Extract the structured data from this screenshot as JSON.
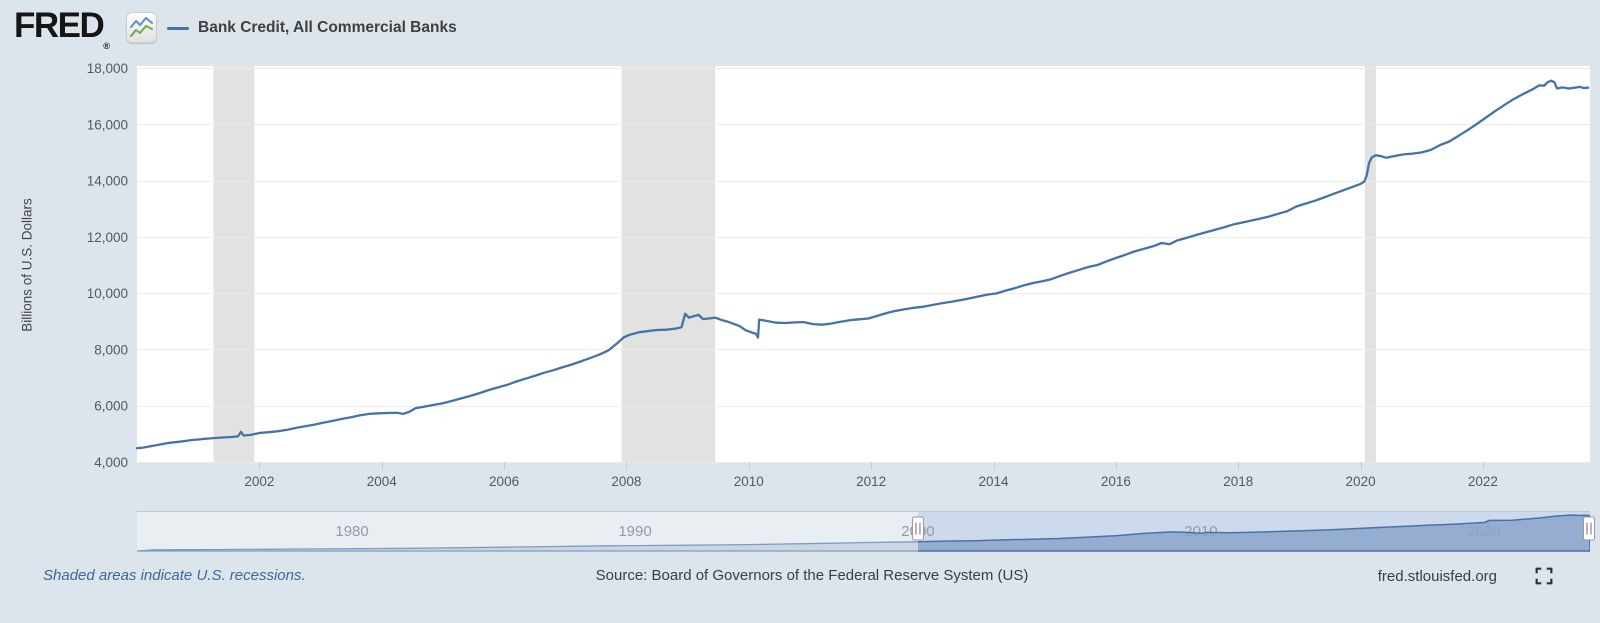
{
  "header": {
    "logo_text": "FRED",
    "registered_mark": "®",
    "legend_label": "Bank Credit, All Commercial Banks"
  },
  "footer": {
    "recession_note": "Shaded areas indicate U.S. recessions.",
    "source": "Source: Board of Governors of the Federal Reserve System (US)",
    "site": "fred.stlouisfed.org"
  },
  "colors": {
    "page_bg": "#dce4ec",
    "plot_bg": "#ffffff",
    "grid": "#ececec",
    "recession": "#e2e2e0",
    "line": "#4572a7",
    "tick_mark": "#c3cdd8",
    "slider_track": "#e9eef3",
    "slider_track_border": "#c2c7cd",
    "slider_selection_bg": "#cdd9ec",
    "slider_area_fill_selected": "#8aa5cd",
    "slider_area_line_selected": "#4a72a6",
    "slider_area_fill_unselected": "#b3c2d6",
    "slider_area_line_unselected": "#7f9cc0",
    "handle_fill": "#fdfdfd",
    "handle_border": "#999999",
    "handle_grip": "#898989",
    "logo_chart_blue": "#5e90c6",
    "logo_chart_green": "#74aa44",
    "footer_icon": "#333333"
  },
  "chart_data": {
    "type": "line",
    "title": "Bank Credit, All Commercial Banks",
    "ylabel": "Billions of U.S. Dollars",
    "x_domain": [
      2000.0,
      2023.75
    ],
    "ylim": [
      4000,
      18000
    ],
    "y_ticks": [
      4000,
      6000,
      8000,
      10000,
      12000,
      14000,
      16000,
      18000
    ],
    "x_ticks": [
      2002,
      2004,
      2006,
      2008,
      2010,
      2012,
      2014,
      2016,
      2018,
      2020,
      2022
    ],
    "grid": "horizontal",
    "legend_position": "top-left",
    "recessions": [
      [
        2001.25,
        2001.92
      ],
      [
        2007.92,
        2009.45
      ],
      [
        2020.07,
        2020.25
      ]
    ],
    "series": [
      {
        "name": "Bank Credit, All Commercial Banks",
        "color": "#4572a7",
        "units": "Billions of U.S. Dollars",
        "points": [
          [
            2000.0,
            4490
          ],
          [
            2000.1,
            4510
          ],
          [
            2000.2,
            4550
          ],
          [
            2000.3,
            4590
          ],
          [
            2000.4,
            4630
          ],
          [
            2000.5,
            4670
          ],
          [
            2000.6,
            4700
          ],
          [
            2000.7,
            4720
          ],
          [
            2000.8,
            4750
          ],
          [
            2000.9,
            4780
          ],
          [
            2001.0,
            4800
          ],
          [
            2001.1,
            4820
          ],
          [
            2001.25,
            4850
          ],
          [
            2001.4,
            4870
          ],
          [
            2001.55,
            4890
          ],
          [
            2001.65,
            4910
          ],
          [
            2001.7,
            5070
          ],
          [
            2001.74,
            4940
          ],
          [
            2001.85,
            4960
          ],
          [
            2002.0,
            5030
          ],
          [
            2002.15,
            5060
          ],
          [
            2002.3,
            5090
          ],
          [
            2002.45,
            5140
          ],
          [
            2002.6,
            5210
          ],
          [
            2002.75,
            5270
          ],
          [
            2002.9,
            5330
          ],
          [
            2003.05,
            5400
          ],
          [
            2003.2,
            5460
          ],
          [
            2003.35,
            5530
          ],
          [
            2003.5,
            5590
          ],
          [
            2003.65,
            5660
          ],
          [
            2003.8,
            5710
          ],
          [
            2003.95,
            5730
          ],
          [
            2004.1,
            5740
          ],
          [
            2004.25,
            5750
          ],
          [
            2004.35,
            5710
          ],
          [
            2004.45,
            5780
          ],
          [
            2004.55,
            5910
          ],
          [
            2004.7,
            5970
          ],
          [
            2004.85,
            6030
          ],
          [
            2005.0,
            6090
          ],
          [
            2005.15,
            6170
          ],
          [
            2005.3,
            6260
          ],
          [
            2005.45,
            6350
          ],
          [
            2005.6,
            6450
          ],
          [
            2005.75,
            6560
          ],
          [
            2005.9,
            6650
          ],
          [
            2006.05,
            6740
          ],
          [
            2006.2,
            6860
          ],
          [
            2006.35,
            6960
          ],
          [
            2006.5,
            7060
          ],
          [
            2006.65,
            7170
          ],
          [
            2006.8,
            7260
          ],
          [
            2006.95,
            7360
          ],
          [
            2007.1,
            7460
          ],
          [
            2007.25,
            7570
          ],
          [
            2007.4,
            7690
          ],
          [
            2007.55,
            7810
          ],
          [
            2007.7,
            7960
          ],
          [
            2007.85,
            8220
          ],
          [
            2007.95,
            8420
          ],
          [
            2008.05,
            8520
          ],
          [
            2008.2,
            8610
          ],
          [
            2008.35,
            8650
          ],
          [
            2008.5,
            8690
          ],
          [
            2008.65,
            8700
          ],
          [
            2008.8,
            8740
          ],
          [
            2008.9,
            8790
          ],
          [
            2008.96,
            9270
          ],
          [
            2009.02,
            9130
          ],
          [
            2009.1,
            9180
          ],
          [
            2009.18,
            9230
          ],
          [
            2009.25,
            9080
          ],
          [
            2009.35,
            9100
          ],
          [
            2009.45,
            9130
          ],
          [
            2009.55,
            9050
          ],
          [
            2009.65,
            8990
          ],
          [
            2009.75,
            8910
          ],
          [
            2009.85,
            8830
          ],
          [
            2009.95,
            8680
          ],
          [
            2010.05,
            8600
          ],
          [
            2010.12,
            8550
          ],
          [
            2010.15,
            8420
          ],
          [
            2010.17,
            9060
          ],
          [
            2010.3,
            9010
          ],
          [
            2010.45,
            8950
          ],
          [
            2010.6,
            8940
          ],
          [
            2010.75,
            8960
          ],
          [
            2010.9,
            8970
          ],
          [
            2011.05,
            8900
          ],
          [
            2011.2,
            8880
          ],
          [
            2011.35,
            8920
          ],
          [
            2011.5,
            8980
          ],
          [
            2011.65,
            9040
          ],
          [
            2011.8,
            9070
          ],
          [
            2011.95,
            9100
          ],
          [
            2012.1,
            9190
          ],
          [
            2012.25,
            9290
          ],
          [
            2012.4,
            9370
          ],
          [
            2012.55,
            9430
          ],
          [
            2012.7,
            9480
          ],
          [
            2012.85,
            9520
          ],
          [
            2013.0,
            9580
          ],
          [
            2013.15,
            9640
          ],
          [
            2013.3,
            9690
          ],
          [
            2013.45,
            9750
          ],
          [
            2013.6,
            9810
          ],
          [
            2013.75,
            9880
          ],
          [
            2013.9,
            9950
          ],
          [
            2014.05,
            9990
          ],
          [
            2014.2,
            10090
          ],
          [
            2014.35,
            10180
          ],
          [
            2014.5,
            10280
          ],
          [
            2014.65,
            10360
          ],
          [
            2014.8,
            10420
          ],
          [
            2014.95,
            10500
          ],
          [
            2015.1,
            10620
          ],
          [
            2015.25,
            10730
          ],
          [
            2015.4,
            10830
          ],
          [
            2015.55,
            10930
          ],
          [
            2015.7,
            11000
          ],
          [
            2015.85,
            11130
          ],
          [
            2016.0,
            11250
          ],
          [
            2016.15,
            11360
          ],
          [
            2016.3,
            11480
          ],
          [
            2016.45,
            11570
          ],
          [
            2016.6,
            11660
          ],
          [
            2016.75,
            11780
          ],
          [
            2016.88,
            11740
          ],
          [
            2017.0,
            11870
          ],
          [
            2017.15,
            11960
          ],
          [
            2017.3,
            12060
          ],
          [
            2017.45,
            12150
          ],
          [
            2017.6,
            12240
          ],
          [
            2017.75,
            12330
          ],
          [
            2017.9,
            12430
          ],
          [
            2018.05,
            12500
          ],
          [
            2018.2,
            12570
          ],
          [
            2018.35,
            12640
          ],
          [
            2018.5,
            12720
          ],
          [
            2018.65,
            12820
          ],
          [
            2018.8,
            12910
          ],
          [
            2018.95,
            13080
          ],
          [
            2019.1,
            13180
          ],
          [
            2019.25,
            13280
          ],
          [
            2019.4,
            13400
          ],
          [
            2019.55,
            13520
          ],
          [
            2019.7,
            13640
          ],
          [
            2019.85,
            13760
          ],
          [
            2020.0,
            13880
          ],
          [
            2020.06,
            13960
          ],
          [
            2020.1,
            14180
          ],
          [
            2020.14,
            14620
          ],
          [
            2020.18,
            14820
          ],
          [
            2020.25,
            14900
          ],
          [
            2020.33,
            14870
          ],
          [
            2020.42,
            14810
          ],
          [
            2020.55,
            14870
          ],
          [
            2020.7,
            14930
          ],
          [
            2020.85,
            14960
          ],
          [
            2021.0,
            15000
          ],
          [
            2021.15,
            15090
          ],
          [
            2021.3,
            15260
          ],
          [
            2021.45,
            15390
          ],
          [
            2021.6,
            15590
          ],
          [
            2021.75,
            15790
          ],
          [
            2021.9,
            16010
          ],
          [
            2022.05,
            16240
          ],
          [
            2022.2,
            16470
          ],
          [
            2022.35,
            16680
          ],
          [
            2022.5,
            16890
          ],
          [
            2022.65,
            17070
          ],
          [
            2022.8,
            17230
          ],
          [
            2022.92,
            17380
          ],
          [
            2023.0,
            17370
          ],
          [
            2023.06,
            17500
          ],
          [
            2023.12,
            17550
          ],
          [
            2023.17,
            17490
          ],
          [
            2023.21,
            17270
          ],
          [
            2023.3,
            17310
          ],
          [
            2023.4,
            17270
          ],
          [
            2023.5,
            17300
          ],
          [
            2023.58,
            17330
          ],
          [
            2023.65,
            17290
          ],
          [
            2023.72,
            17300
          ]
        ]
      }
    ],
    "slider": {
      "x_domain": [
        1972.4,
        2023.75
      ],
      "selected": [
        2000.0,
        2023.75
      ],
      "year_labels": [
        1980,
        1990,
        2000,
        2010,
        2020
      ],
      "points": [
        [
          1973,
          560
        ],
        [
          1974,
          640
        ],
        [
          1975,
          700
        ],
        [
          1976,
          760
        ],
        [
          1977,
          850
        ],
        [
          1978,
          950
        ],
        [
          1979,
          1040
        ],
        [
          1980,
          1120
        ],
        [
          1981,
          1220
        ],
        [
          1982,
          1330
        ],
        [
          1983,
          1450
        ],
        [
          1984,
          1610
        ],
        [
          1985,
          1800
        ],
        [
          1986,
          1990
        ],
        [
          1987,
          2160
        ],
        [
          1988,
          2340
        ],
        [
          1989,
          2520
        ],
        [
          1990,
          2650
        ],
        [
          1991,
          2740
        ],
        [
          1992,
          2820
        ],
        [
          1993,
          2960
        ],
        [
          1994,
          3110
        ],
        [
          1995,
          3350
        ],
        [
          1996,
          3550
        ],
        [
          1997,
          3800
        ],
        [
          1998,
          4080
        ],
        [
          1999,
          4300
        ],
        [
          2000,
          4490
        ],
        [
          2001,
          4800
        ],
        [
          2002,
          5030
        ],
        [
          2003,
          5380
        ],
        [
          2004,
          5740
        ],
        [
          2005,
          6090
        ],
        [
          2006,
          6740
        ],
        [
          2007,
          7460
        ],
        [
          2008,
          8560
        ],
        [
          2008.96,
          9270
        ],
        [
          2009.5,
          9050
        ],
        [
          2010,
          8620
        ],
        [
          2010.2,
          9050
        ],
        [
          2011,
          8900
        ],
        [
          2012,
          9190
        ],
        [
          2013,
          9580
        ],
        [
          2014,
          10000
        ],
        [
          2015,
          10560
        ],
        [
          2016,
          11250
        ],
        [
          2017,
          11870
        ],
        [
          2018,
          12480
        ],
        [
          2019,
          13110
        ],
        [
          2020,
          13880
        ],
        [
          2020.2,
          14900
        ],
        [
          2021,
          15000
        ],
        [
          2021.9,
          16010
        ],
        [
          2022.5,
          16890
        ],
        [
          2023.1,
          17520
        ],
        [
          2023.3,
          17300
        ],
        [
          2023.72,
          17300
        ]
      ]
    }
  }
}
